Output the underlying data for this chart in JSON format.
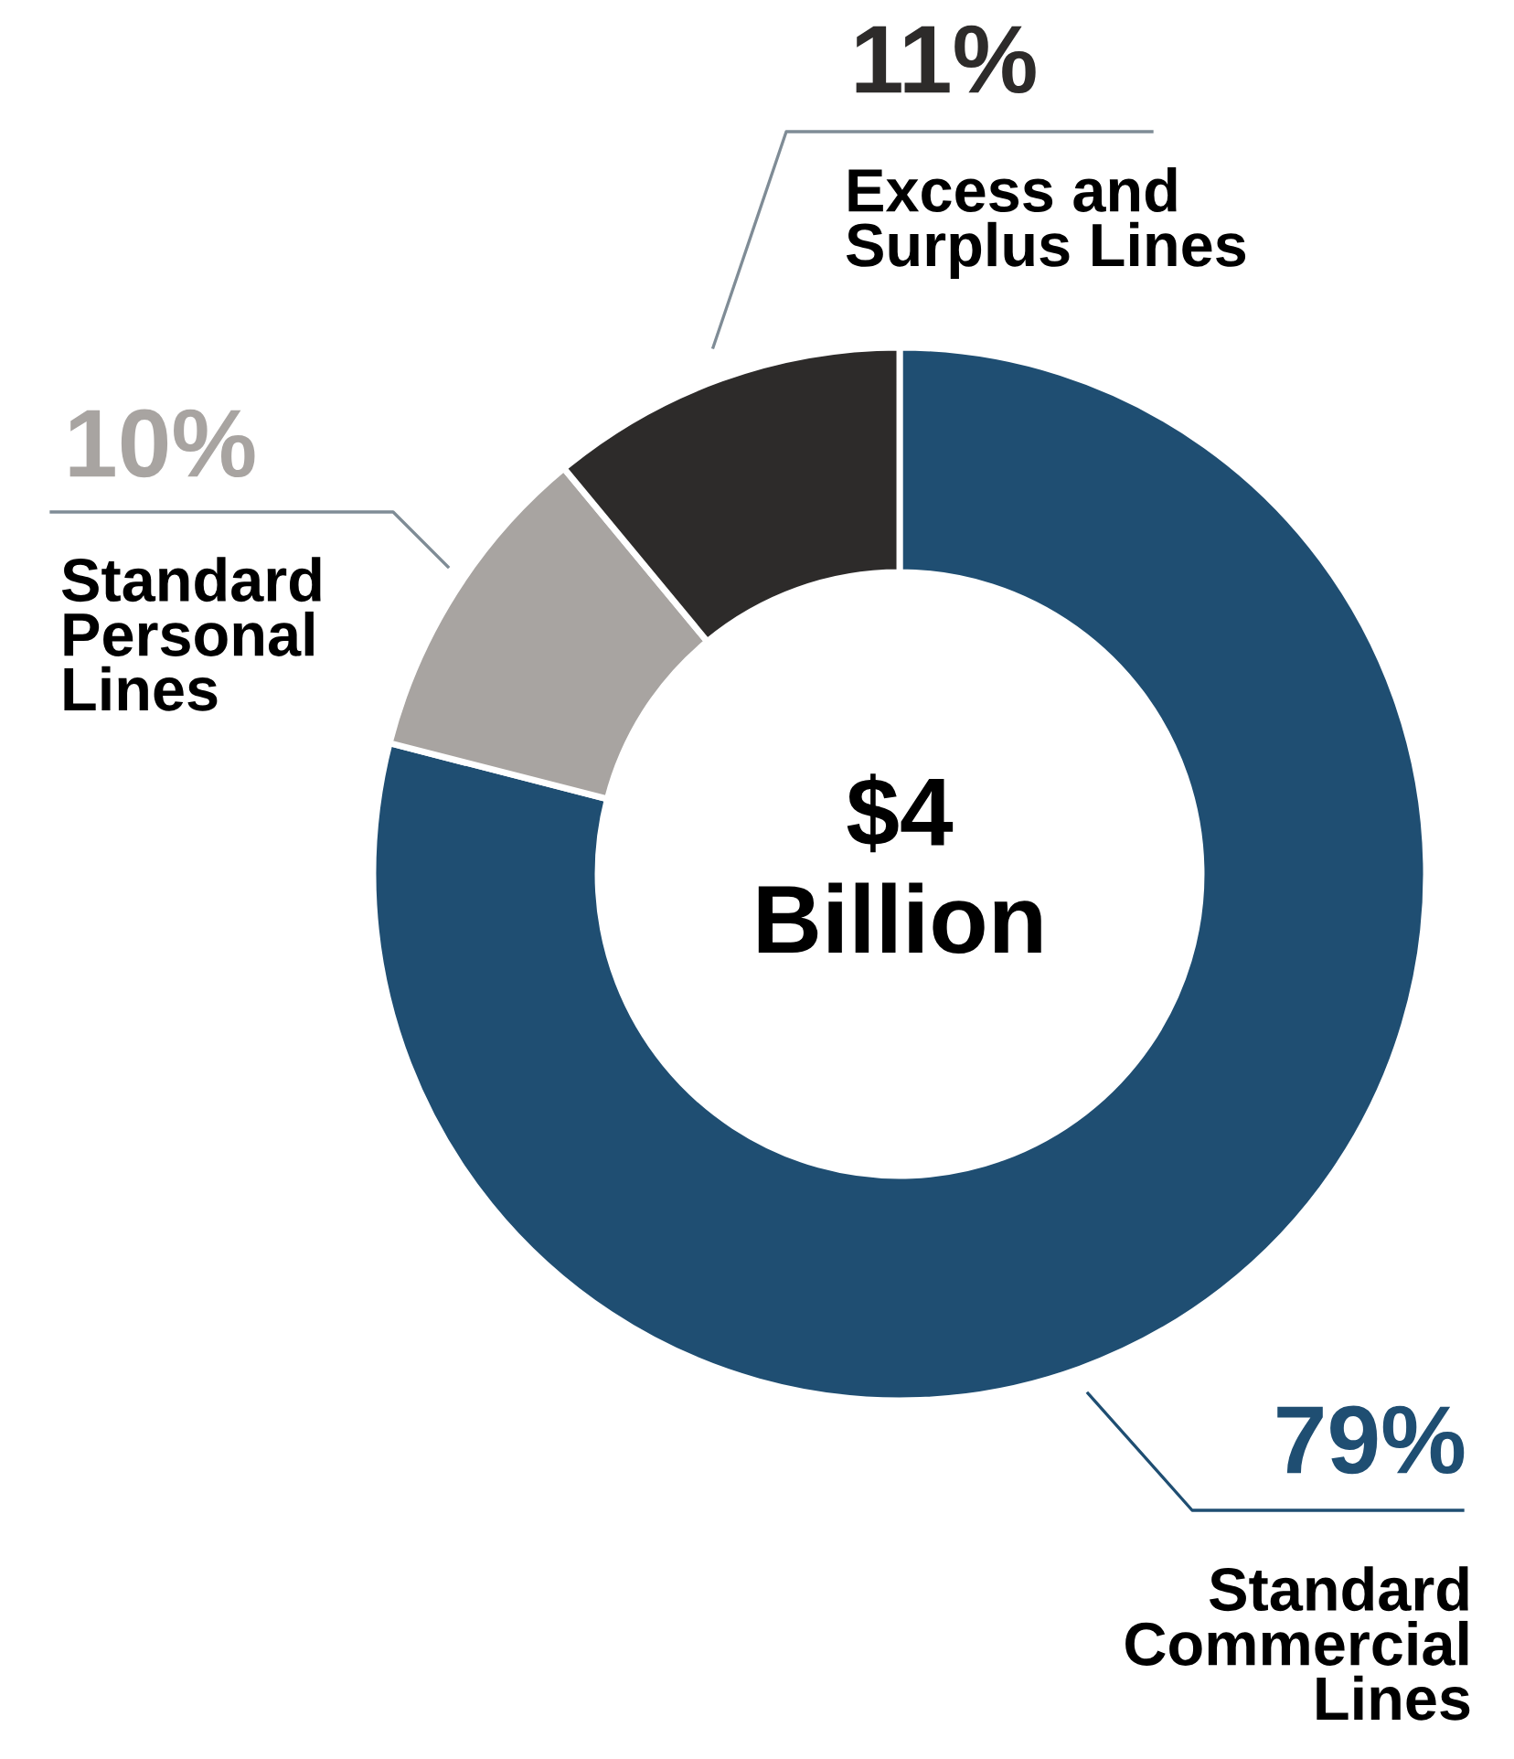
{
  "chart_data": {
    "type": "donut",
    "categories": [
      "Standard Commercial Lines",
      "Standard Personal Lines",
      "Excess and Surplus Lines"
    ],
    "values": [
      79,
      10,
      11
    ],
    "value_labels": [
      "79%",
      "10%",
      "11%"
    ],
    "colors": [
      "#1f4e72",
      "#a8a4a1",
      "#2d2b2a"
    ],
    "annotations": [
      "$4\nBillion"
    ]
  }
}
